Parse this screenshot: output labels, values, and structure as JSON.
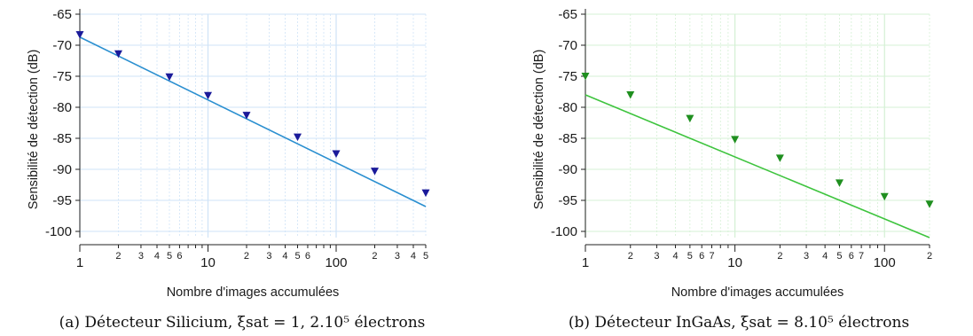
{
  "chart_data": [
    {
      "type": "scatter",
      "panel": "a",
      "xlabel": "Nombre d'images accumulées",
      "ylabel": "Sensibilité de détection (dB)",
      "xscale": "log",
      "xlim": [
        1,
        500
      ],
      "ylim": [
        -101,
        -65
      ],
      "yticks": [
        -65,
        -70,
        -75,
        -80,
        -85,
        -90,
        -95,
        -100
      ],
      "xticks_major": [
        {
          "value": 1,
          "label": "1"
        },
        {
          "value": 10,
          "label": "10"
        },
        {
          "value": 100,
          "label": "100"
        }
      ],
      "xticks_minor": [
        {
          "value": 2,
          "label": "2"
        },
        {
          "value": 3,
          "label": "3"
        },
        {
          "value": 4,
          "label": "4"
        },
        {
          "value": 5,
          "label": "5"
        },
        {
          "value": 6,
          "label": "6"
        },
        {
          "value": 20,
          "label": "2"
        },
        {
          "value": 30,
          "label": "3"
        },
        {
          "value": 40,
          "label": "4"
        },
        {
          "value": 50,
          "label": "5"
        },
        {
          "value": 60,
          "label": "6"
        },
        {
          "value": 200,
          "label": "2"
        },
        {
          "value": 300,
          "label": "3"
        },
        {
          "value": 400,
          "label": "4"
        },
        {
          "value": 500,
          "label": "5"
        }
      ],
      "points": {
        "x": [
          1,
          2,
          5,
          10,
          20,
          50,
          100,
          200,
          500
        ],
        "y": [
          -68.3,
          -71.4,
          -75.1,
          -78.1,
          -81.3,
          -84.8,
          -87.5,
          -90.3,
          -93.8
        ]
      },
      "fit_line": {
        "x": [
          1,
          500
        ],
        "y": [
          -68.7,
          -96.0
        ]
      },
      "grid": true,
      "marker_color": "#1a1a9a",
      "line_color": "#2a8fd0",
      "grid_color": "#cfe3f7",
      "caption": "(a) Détecteur Silicium, ξsat = 1, 2.10⁵ électrons"
    },
    {
      "type": "scatter",
      "panel": "b",
      "xlabel": "Nombre d'images accumulées",
      "ylabel": "Sensibilité de détection (dB)",
      "xscale": "log",
      "xlim": [
        1,
        200
      ],
      "ylim": [
        -101,
        -65
      ],
      "yticks": [
        -65,
        -70,
        -75,
        -80,
        -85,
        -90,
        -95,
        -100
      ],
      "xticks_major": [
        {
          "value": 1,
          "label": "1"
        },
        {
          "value": 10,
          "label": "10"
        },
        {
          "value": 100,
          "label": "100"
        }
      ],
      "xticks_minor": [
        {
          "value": 2,
          "label": "2"
        },
        {
          "value": 3,
          "label": "3"
        },
        {
          "value": 4,
          "label": "4"
        },
        {
          "value": 5,
          "label": "5"
        },
        {
          "value": 6,
          "label": "6"
        },
        {
          "value": 7,
          "label": "7"
        },
        {
          "value": 20,
          "label": "2"
        },
        {
          "value": 30,
          "label": "3"
        },
        {
          "value": 40,
          "label": "4"
        },
        {
          "value": 50,
          "label": "5"
        },
        {
          "value": 60,
          "label": "6"
        },
        {
          "value": 70,
          "label": "7"
        },
        {
          "value": 200,
          "label": "2"
        }
      ],
      "points": {
        "x": [
          1,
          2,
          5,
          10,
          20,
          50,
          100,
          200
        ],
        "y": [
          -75.0,
          -78.0,
          -81.8,
          -85.2,
          -88.2,
          -92.2,
          -94.4,
          -95.6
        ]
      },
      "fit_line": {
        "x": [
          1,
          200
        ],
        "y": [
          -78.0,
          -101.0
        ]
      },
      "grid": true,
      "marker_color": "#1f8f1f",
      "line_color": "#3ec43e",
      "grid_color": "#d4f0d4",
      "caption": "(b) Détecteur InGaAs, ξsat = 8.10⁵ électrons"
    }
  ]
}
